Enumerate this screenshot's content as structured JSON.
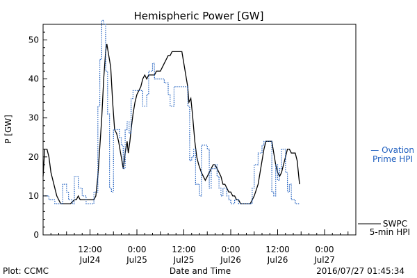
{
  "chart_data": {
    "type": "line",
    "title": "Hemispheric Power [GW]",
    "xlabel": "Date and Time",
    "ylabel": "P [GW]",
    "ylim": [
      0,
      54
    ],
    "xlim": [
      0,
      80
    ],
    "x_unit": "hours",
    "y_ticks": [
      0,
      10,
      20,
      30,
      40,
      50
    ],
    "x_ticks": [
      {
        "x": 12,
        "time": "12:00",
        "date": "Jul24"
      },
      {
        "x": 24,
        "time": "0:00",
        "date": "Jul25"
      },
      {
        "x": 36,
        "time": "12:00",
        "date": "Jul25"
      },
      {
        "x": 48,
        "time": "0:00",
        "date": "Jul26"
      },
      {
        "x": 60,
        "time": "12:00",
        "date": "Jul26"
      },
      {
        "x": 72,
        "time": "0:00",
        "date": "Jul27"
      }
    ],
    "grid": false,
    "legend_position": "right",
    "series": [
      {
        "name": "SWPC 5-min HPI",
        "legend_lines": [
          "SWPC",
          "5-min HPI"
        ],
        "color": "#000000",
        "style": "solid",
        "points": [
          [
            0,
            15
          ],
          [
            0.4,
            22
          ],
          [
            1,
            22
          ],
          [
            1.5,
            20
          ],
          [
            2,
            16
          ],
          [
            3,
            12
          ],
          [
            3.5,
            10
          ],
          [
            4,
            9
          ],
          [
            4.5,
            8
          ],
          [
            5,
            8
          ],
          [
            6,
            8
          ],
          [
            7,
            8
          ],
          [
            8,
            9
          ],
          [
            8.5,
            9
          ],
          [
            9,
            10
          ],
          [
            9.5,
            9
          ],
          [
            10,
            9
          ],
          [
            11,
            9
          ],
          [
            12,
            9
          ],
          [
            13,
            9
          ],
          [
            13.5,
            10
          ],
          [
            14,
            15
          ],
          [
            15,
            30
          ],
          [
            15.5,
            40
          ],
          [
            16,
            47
          ],
          [
            16.3,
            49
          ],
          [
            16.8,
            46
          ],
          [
            17.3,
            43
          ],
          [
            17.8,
            34
          ],
          [
            18.3,
            27
          ],
          [
            18.8,
            26
          ],
          [
            19.3,
            24
          ],
          [
            20,
            20
          ],
          [
            20.5,
            17
          ],
          [
            21,
            21
          ],
          [
            21.5,
            24
          ],
          [
            21.8,
            21
          ],
          [
            22.2,
            24
          ],
          [
            22.5,
            27
          ],
          [
            23,
            31
          ],
          [
            23.5,
            34
          ],
          [
            24,
            36
          ],
          [
            24.5,
            37
          ],
          [
            25,
            38
          ],
          [
            25.5,
            40
          ],
          [
            26,
            41
          ],
          [
            26.5,
            40
          ],
          [
            27,
            41
          ],
          [
            27.5,
            41
          ],
          [
            28,
            41
          ],
          [
            28.5,
            41
          ],
          [
            29,
            42
          ],
          [
            30,
            42
          ],
          [
            30.5,
            43
          ],
          [
            31,
            44
          ],
          [
            31.5,
            45
          ],
          [
            32,
            46
          ],
          [
            32.5,
            46
          ],
          [
            33,
            47
          ],
          [
            34,
            47
          ],
          [
            35,
            47
          ],
          [
            35.5,
            47
          ],
          [
            36,
            44
          ],
          [
            37,
            38
          ],
          [
            37.3,
            34
          ],
          [
            37.8,
            35
          ],
          [
            38.2,
            31
          ],
          [
            38.8,
            24
          ],
          [
            39.3,
            20
          ],
          [
            39.8,
            18
          ],
          [
            40.5,
            16
          ],
          [
            41,
            15
          ],
          [
            41.5,
            14
          ],
          [
            42,
            15
          ],
          [
            42.5,
            16
          ],
          [
            43,
            17
          ],
          [
            43.5,
            18
          ],
          [
            44,
            18
          ],
          [
            44.5,
            17
          ],
          [
            45,
            16
          ],
          [
            45.5,
            15
          ],
          [
            46,
            13
          ],
          [
            46.5,
            13
          ],
          [
            47,
            12
          ],
          [
            47.5,
            11
          ],
          [
            48,
            11
          ],
          [
            48.5,
            10
          ],
          [
            49,
            10
          ],
          [
            49.5,
            9
          ],
          [
            50,
            9
          ],
          [
            50.5,
            8
          ],
          [
            51,
            8
          ],
          [
            52,
            8
          ],
          [
            53,
            8
          ],
          [
            54,
            10
          ],
          [
            55,
            13
          ],
          [
            55.5,
            16
          ],
          [
            56,
            19
          ],
          [
            56.5,
            22
          ],
          [
            57,
            24
          ],
          [
            57.5,
            24
          ],
          [
            58,
            24
          ],
          [
            58.5,
            24
          ],
          [
            59,
            21
          ],
          [
            59.5,
            18
          ],
          [
            60,
            16
          ],
          [
            60.5,
            15
          ],
          [
            61,
            16
          ],
          [
            61.5,
            18
          ],
          [
            62,
            20
          ],
          [
            62.5,
            22
          ],
          [
            63,
            22
          ],
          [
            63.5,
            21
          ],
          [
            64,
            21
          ],
          [
            64.5,
            21
          ],
          [
            65,
            19
          ],
          [
            65.3,
            16
          ],
          [
            65.6,
            13
          ]
        ]
      },
      {
        "name": "Ovation Prime HPI",
        "legend_lines": [
          "— Ovation",
          "Prime HPI"
        ],
        "color": "#1f5fbf",
        "style": "dotted-step",
        "points": [
          [
            0,
            10
          ],
          [
            1,
            10
          ],
          [
            1.5,
            9
          ],
          [
            2,
            9
          ],
          [
            3,
            8
          ],
          [
            4,
            8
          ],
          [
            5,
            13
          ],
          [
            6,
            11
          ],
          [
            6.5,
            9
          ],
          [
            7,
            9
          ],
          [
            7.5,
            8
          ],
          [
            8,
            15
          ],
          [
            9,
            12
          ],
          [
            10,
            10
          ],
          [
            11,
            8
          ],
          [
            12,
            8
          ],
          [
            13,
            11
          ],
          [
            14,
            33
          ],
          [
            14.5,
            45
          ],
          [
            15,
            55
          ],
          [
            15.5,
            54
          ],
          [
            16,
            42
          ],
          [
            16.5,
            31
          ],
          [
            17,
            12
          ],
          [
            17.5,
            11
          ],
          [
            18,
            27
          ],
          [
            19.5,
            25
          ],
          [
            20,
            23
          ],
          [
            20.5,
            17
          ],
          [
            21,
            27
          ],
          [
            21.5,
            29
          ],
          [
            22,
            26
          ],
          [
            22.5,
            35
          ],
          [
            23,
            37
          ],
          [
            24,
            37
          ],
          [
            25,
            37
          ],
          [
            25.5,
            33
          ],
          [
            26,
            33
          ],
          [
            26.5,
            36
          ],
          [
            27,
            42
          ],
          [
            28,
            44
          ],
          [
            28.5,
            40
          ],
          [
            29.5,
            40
          ],
          [
            30.5,
            40
          ],
          [
            31,
            39
          ],
          [
            32,
            36
          ],
          [
            32.5,
            33
          ],
          [
            33,
            33
          ],
          [
            33.5,
            38
          ],
          [
            34,
            38
          ],
          [
            35,
            38
          ],
          [
            35.5,
            38
          ],
          [
            36,
            38
          ],
          [
            37,
            33
          ],
          [
            37.5,
            19
          ],
          [
            38,
            20
          ],
          [
            38.5,
            22
          ],
          [
            39,
            13
          ],
          [
            39.5,
            13
          ],
          [
            40,
            10
          ],
          [
            40.5,
            23
          ],
          [
            41,
            23
          ],
          [
            42,
            22
          ],
          [
            42.5,
            12
          ],
          [
            43,
            17
          ],
          [
            44,
            18
          ],
          [
            44.5,
            15
          ],
          [
            45,
            12
          ],
          [
            45.5,
            10
          ],
          [
            46,
            12
          ],
          [
            47,
            10
          ],
          [
            47.5,
            9
          ],
          [
            48,
            8
          ],
          [
            49,
            9
          ],
          [
            50,
            8
          ],
          [
            52,
            8
          ],
          [
            53,
            8
          ],
          [
            53.5,
            12
          ],
          [
            54,
            18
          ],
          [
            55,
            21
          ],
          [
            56,
            23
          ],
          [
            56.5,
            24
          ],
          [
            58,
            24
          ],
          [
            58.5,
            11
          ],
          [
            59,
            10
          ],
          [
            59.5,
            18
          ],
          [
            60,
            14
          ],
          [
            60.5,
            17
          ],
          [
            61,
            22
          ],
          [
            62,
            16
          ],
          [
            62.5,
            11
          ],
          [
            63,
            13
          ],
          [
            63.5,
            9
          ],
          [
            64,
            9
          ],
          [
            64.5,
            8
          ],
          [
            65,
            8
          ],
          [
            65.5,
            8
          ]
        ]
      }
    ],
    "footer_left": "Plot: CCMC",
    "footer_right": "2016/07/27 01:45:34"
  }
}
